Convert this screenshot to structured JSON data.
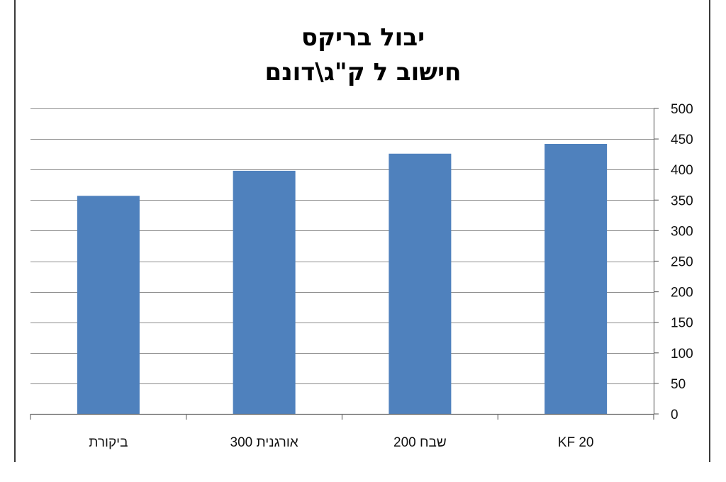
{
  "chart_data": {
    "type": "bar",
    "title": "יבול בריקס",
    "subtitle": "חישוב ל ק\"ג\\דונם",
    "categories": [
      "ביקורת",
      "אורגנית 300",
      "שבח 200",
      "KF 20"
    ],
    "values": [
      357,
      398,
      426,
      442
    ],
    "ylim": [
      0,
      500
    ],
    "yticks": [
      0,
      50,
      100,
      150,
      200,
      250,
      300,
      350,
      400,
      450,
      500
    ],
    "y_axis_side": "right",
    "grid": true,
    "bar_color": "#4f81bd",
    "grid_color": "#8c8c8c",
    "xlabel": "",
    "ylabel": ""
  }
}
